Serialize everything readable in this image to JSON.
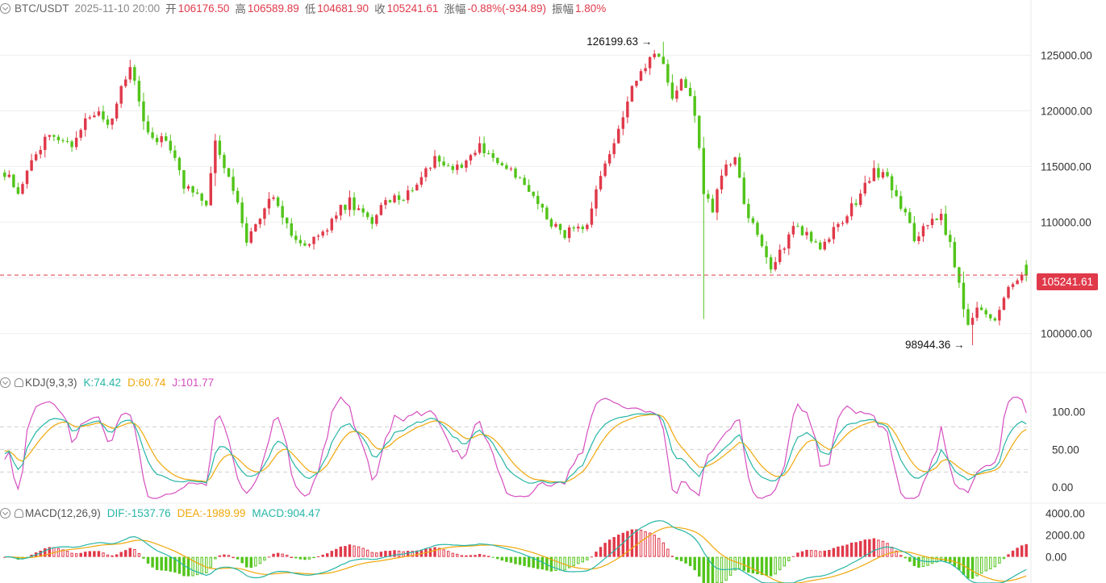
{
  "header": {
    "pair": "BTC/USDT",
    "time": "2025-11-10 20:00",
    "open_label": "开",
    "open": "106176.50",
    "high_label": "高",
    "high": "106589.89",
    "low_label": "低",
    "low": "104681.90",
    "close_label": "收",
    "close": "105241.61",
    "change_label": "涨幅",
    "change": "-0.88%(-934.89)",
    "amp_label": "振幅",
    "amp": "1.80%"
  },
  "colors": {
    "up": "#e0394a",
    "down": "#52c41a",
    "k": "#26b5a6",
    "d": "#f0a70a",
    "j": "#d64fc0",
    "grid": "#eeeeee"
  },
  "chart_data": [
    {
      "type": "candlestick",
      "title": "BTC/USDT",
      "ylim": [
        97000,
        128500
      ],
      "yticks": [
        "125000.00",
        "120000.00",
        "115000.00",
        "110000.00",
        "105000.00",
        "100000.00"
      ],
      "current_price": 105241.61,
      "current_price_label": "105241.61",
      "annotations": [
        {
          "label": "126199.63",
          "value": 126199.63
        },
        {
          "label": "98944.36",
          "value": 98944.36
        }
      ],
      "close_path": [
        [
          0,
          114500
        ],
        [
          3,
          112800
        ],
        [
          6,
          115200
        ],
        [
          9,
          117500
        ],
        [
          12,
          117800
        ],
        [
          15,
          117000
        ],
        [
          18,
          119200
        ],
        [
          21,
          120200
        ],
        [
          23,
          118300
        ],
        [
          26,
          121800
        ],
        [
          28,
          124200
        ],
        [
          30,
          121200
        ],
        [
          32,
          117700
        ],
        [
          35,
          117400
        ],
        [
          38,
          116200
        ],
        [
          40,
          113200
        ],
        [
          43,
          112800
        ],
        [
          45,
          111800
        ],
        [
          47,
          117000
        ],
        [
          50,
          113800
        ],
        [
          52,
          111400
        ],
        [
          54,
          108300
        ],
        [
          57,
          110600
        ],
        [
          60,
          112200
        ],
        [
          62,
          110600
        ],
        [
          64,
          109100
        ],
        [
          66,
          107800
        ],
        [
          69,
          108600
        ],
        [
          72,
          109300
        ],
        [
          74,
          110800
        ],
        [
          77,
          111800
        ],
        [
          80,
          110600
        ],
        [
          82,
          110100
        ],
        [
          85,
          111800
        ],
        [
          88,
          112200
        ],
        [
          91,
          112800
        ],
        [
          94,
          115000
        ],
        [
          97,
          115800
        ],
        [
          100,
          114800
        ],
        [
          103,
          115600
        ],
        [
          106,
          116800
        ],
        [
          109,
          115800
        ],
        [
          112,
          114800
        ],
        [
          115,
          113700
        ],
        [
          118,
          112300
        ],
        [
          121,
          110600
        ],
        [
          124,
          108900
        ],
        [
          127,
          109200
        ],
        [
          130,
          109400
        ],
        [
          132,
          112500
        ],
        [
          135,
          116200
        ],
        [
          138,
          119800
        ],
        [
          141,
          122800
        ],
        [
          143,
          124200
        ],
        [
          145,
          125100
        ],
        [
          147,
          124400
        ],
        [
          149,
          121400
        ],
        [
          151,
          122400
        ],
        [
          153,
          121700
        ],
        [
          155,
          116800
        ],
        [
          156,
          112600
        ],
        [
          158,
          111200
        ],
        [
          160,
          114300
        ],
        [
          163,
          115600
        ],
        [
          165,
          111600
        ],
        [
          168,
          108600
        ],
        [
          171,
          106100
        ],
        [
          173,
          107200
        ],
        [
          176,
          109800
        ],
        [
          179,
          108900
        ],
        [
          182,
          107500
        ],
        [
          185,
          109300
        ],
        [
          188,
          110600
        ],
        [
          191,
          112600
        ],
        [
          194,
          114800
        ],
        [
          197,
          113700
        ],
        [
          200,
          111500
        ],
        [
          203,
          108700
        ],
        [
          206,
          109700
        ],
        [
          209,
          110700
        ],
        [
          211,
          107800
        ],
        [
          213,
          104400
        ],
        [
          215,
          100500
        ],
        [
          217,
          102200
        ],
        [
          219,
          101700
        ],
        [
          221,
          100800
        ],
        [
          223,
          103500
        ],
        [
          226,
          104600
        ],
        [
          228,
          105241
        ]
      ],
      "n_candles": 229
    },
    {
      "type": "line",
      "title": "KDJ(9,3,3)",
      "ylim": [
        -15,
        120
      ],
      "yticks": [
        "100.00",
        "50.00",
        "0.00"
      ],
      "series": [
        {
          "name": "K",
          "value_label": "K:74.42",
          "last": 74.42
        },
        {
          "name": "D",
          "value_label": "D:60.74",
          "last": 60.74
        },
        {
          "name": "J",
          "value_label": "J:101.77",
          "last": 101.77
        }
      ]
    },
    {
      "type": "bar",
      "title": "MACD(12,26,9)",
      "ylim": [
        -2400,
        4200
      ],
      "yticks": [
        "4000.00",
        "2000.00",
        "0.00"
      ],
      "series": [
        {
          "name": "DIF",
          "value_label": "DIF:-1537.76",
          "last": -1537.76
        },
        {
          "name": "DEA",
          "value_label": "DEA:-1989.99",
          "last": -1989.99
        },
        {
          "name": "MACD",
          "value_label": "MACD:904.47",
          "last": 904.47
        }
      ]
    }
  ]
}
